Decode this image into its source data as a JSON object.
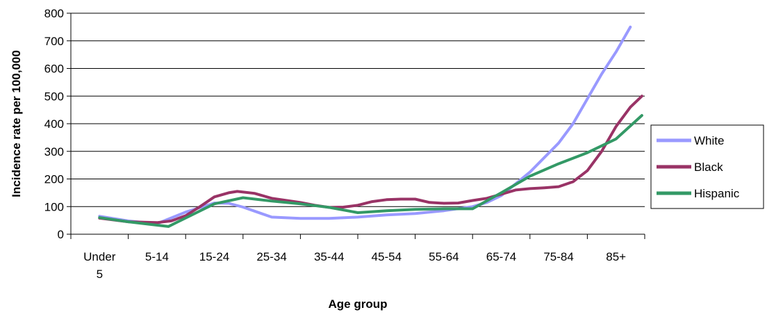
{
  "chart_data": {
    "type": "line",
    "title": "",
    "xlabel": "Age group",
    "ylabel": "Incidence rate per 100,000",
    "ylim": [
      0,
      800
    ],
    "yticks": [
      0,
      100,
      200,
      300,
      400,
      500,
      600,
      700,
      800
    ],
    "grid": true,
    "legend_position": "right",
    "categories": [
      [
        "Under",
        "5"
      ],
      [
        "5-14"
      ],
      [
        "15-24"
      ],
      [
        "25-34"
      ],
      [
        "35-44"
      ],
      [
        "45-54"
      ],
      [
        "55-64"
      ],
      [
        "65-74"
      ],
      [
        "75-84"
      ],
      [
        "85+"
      ]
    ],
    "series": [
      {
        "name": "White",
        "color": "#9999ff",
        "points": [
          [
            0,
            65
          ],
          [
            0.5,
            48
          ],
          [
            1,
            38
          ],
          [
            1.5,
            80
          ],
          [
            2,
            113
          ],
          [
            2.25,
            112
          ],
          [
            2.5,
            98
          ],
          [
            2.75,
            80
          ],
          [
            3,
            62
          ],
          [
            3.5,
            57
          ],
          [
            4,
            57
          ],
          [
            4.5,
            62
          ],
          [
            5,
            70
          ],
          [
            5.5,
            75
          ],
          [
            6,
            85
          ],
          [
            6.5,
            100
          ],
          [
            6.75,
            115
          ],
          [
            7,
            140
          ],
          [
            7.5,
            225
          ],
          [
            8,
            330
          ],
          [
            8.25,
            400
          ],
          [
            8.5,
            490
          ],
          [
            8.75,
            580
          ],
          [
            9,
            660
          ],
          [
            9.25,
            750
          ]
        ]
      },
      {
        "name": "Black",
        "color": "#993366",
        "points": [
          [
            0,
            58
          ],
          [
            0.5,
            45
          ],
          [
            1,
            42
          ],
          [
            1.25,
            48
          ],
          [
            1.5,
            67
          ],
          [
            1.75,
            100
          ],
          [
            2,
            135
          ],
          [
            2.25,
            150
          ],
          [
            2.4,
            155
          ],
          [
            2.7,
            148
          ],
          [
            3,
            130
          ],
          [
            3.5,
            115
          ],
          [
            3.75,
            105
          ],
          [
            4,
            97
          ],
          [
            4.25,
            98
          ],
          [
            4.5,
            105
          ],
          [
            4.75,
            118
          ],
          [
            5,
            125
          ],
          [
            5.25,
            127
          ],
          [
            5.5,
            127
          ],
          [
            5.75,
            115
          ],
          [
            6,
            112
          ],
          [
            6.25,
            113
          ],
          [
            6.5,
            122
          ],
          [
            6.75,
            130
          ],
          [
            7,
            145
          ],
          [
            7.25,
            160
          ],
          [
            7.5,
            165
          ],
          [
            7.75,
            168
          ],
          [
            8,
            172
          ],
          [
            8.25,
            190
          ],
          [
            8.5,
            230
          ],
          [
            8.75,
            300
          ],
          [
            9,
            390
          ],
          [
            9.25,
            460
          ],
          [
            9.45,
            500
          ]
        ]
      },
      {
        "name": "Hispanic",
        "color": "#339966",
        "points": [
          [
            0,
            60
          ],
          [
            0.5,
            45
          ],
          [
            1.2,
            28
          ],
          [
            2,
            110
          ],
          [
            2.5,
            132
          ],
          [
            3,
            120
          ],
          [
            3.5,
            110
          ],
          [
            4,
            97
          ],
          [
            4.5,
            78
          ],
          [
            5,
            85
          ],
          [
            5.5,
            90
          ],
          [
            6,
            92
          ],
          [
            6.5,
            92
          ],
          [
            7,
            150
          ],
          [
            7.5,
            210
          ],
          [
            8,
            255
          ],
          [
            8.5,
            295
          ],
          [
            9,
            345
          ],
          [
            9.45,
            430
          ]
        ]
      }
    ]
  }
}
